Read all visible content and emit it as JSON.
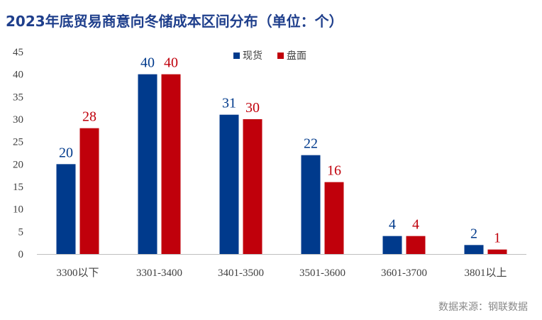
{
  "title": "2023年底贸易商意向冬储成本区间分布（单位：个）",
  "source": "数据来源：钢联数据",
  "colors": {
    "现货": "#003a8c",
    "盘面": "#c0000b",
    "axis": "#bfbfbf",
    "text": "#404040"
  },
  "chart_data": {
    "type": "bar",
    "title": "2023年底贸易商意向冬储成本区间分布（单位：个）",
    "categories": [
      "3300以下",
      "3301-3400",
      "3401-3500",
      "3501-3600",
      "3601-3700",
      "3801以上"
    ],
    "series": [
      {
        "name": "现货",
        "values": [
          20,
          40,
          31,
          22,
          4,
          2
        ]
      },
      {
        "name": "盘面",
        "values": [
          28,
          40,
          30,
          16,
          4,
          1
        ]
      }
    ],
    "yticks": [
      0,
      5,
      10,
      15,
      20,
      25,
      30,
      35,
      40,
      45
    ],
    "ylim": [
      0,
      45
    ],
    "grid": false,
    "legend": "top-right"
  }
}
